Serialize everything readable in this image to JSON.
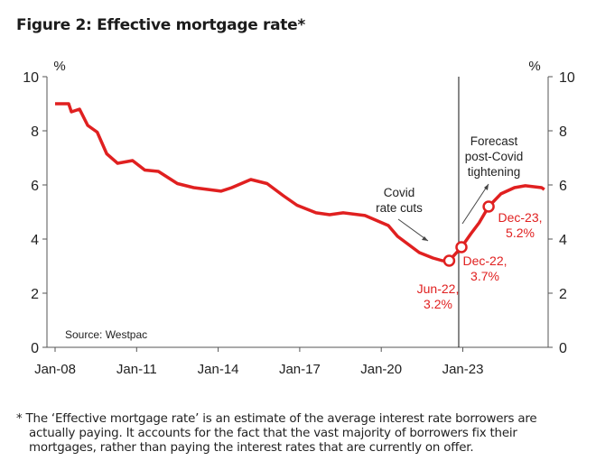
{
  "title": "Figure 2: Effective mortgage rate*",
  "footnote": [
    "* The ‘Effective mortgage rate’ is an estimate of the average interest rate borrowers are",
    "actually paying. It accounts for the fact that the vast majority of borrowers fix their",
    "mortgages, rather than paying the interest rates that are currently on offer."
  ],
  "chart_data": {
    "type": "line",
    "title": "Figure 2: Effective mortgage rate*",
    "ylabel_left": "%",
    "ylabel_right": "%",
    "ylim": [
      0,
      10
    ],
    "yticks": [
      0,
      2,
      4,
      6,
      8,
      10
    ],
    "xlim": [
      2008.0,
      2026.0
    ],
    "xticks": [
      {
        "x": 2008,
        "label": "Jan-08"
      },
      {
        "x": 2011,
        "label": "Jan-11"
      },
      {
        "x": 2014,
        "label": "Jan-14"
      },
      {
        "x": 2017,
        "label": "Jan-17"
      },
      {
        "x": 2020,
        "label": "Jan-20"
      },
      {
        "x": 2023,
        "label": "Jan-23"
      }
    ],
    "color": "#e02020",
    "forecast_start": 2022.85,
    "series": [
      {
        "x": [
          2008.0,
          2008.5,
          2008.6,
          2008.9,
          2009.2,
          2009.55,
          2009.9,
          2010.3,
          2010.85,
          2011.3,
          2011.8,
          2012.5,
          2013.1,
          2014.1,
          2014.5,
          2015.2,
          2015.8,
          2016.4,
          2016.9,
          2017.6,
          2018.1,
          2018.6,
          2019.4,
          2020.26,
          2020.6,
          2021.0,
          2021.4,
          2021.9,
          2022.25,
          2022.5,
          2022.95,
          2023.3,
          2023.6,
          2023.95,
          2024.4,
          2024.9,
          2025.3,
          2025.9,
          2026.0
        ],
        "y": [
          9.0,
          9.0,
          8.7,
          8.8,
          8.2,
          7.95,
          7.15,
          6.8,
          6.9,
          6.55,
          6.5,
          6.05,
          5.9,
          5.77,
          5.9,
          6.2,
          6.05,
          5.6,
          5.25,
          4.97,
          4.9,
          4.97,
          4.87,
          4.5,
          4.1,
          3.8,
          3.5,
          3.3,
          3.2,
          3.2,
          3.7,
          4.2,
          4.6,
          5.2,
          5.67,
          5.9,
          5.97,
          5.9,
          5.83
        ]
      }
    ],
    "markers": [
      {
        "x": 2022.5,
        "y": 3.2,
        "label": [
          "Jun-22,",
          "3.2%"
        ]
      },
      {
        "x": 2022.95,
        "y": 3.7,
        "label": [
          "Dec-22,",
          "3.7%"
        ]
      },
      {
        "x": 2023.95,
        "y": 5.2,
        "label": [
          "Dec-23,",
          "5.2%"
        ]
      }
    ],
    "annotations": [
      {
        "text": [
          "Covid",
          "rate cuts"
        ]
      },
      {
        "text": [
          "Forecast",
          "post-Covid",
          "tightening"
        ]
      }
    ],
    "source": "Source: Westpac"
  }
}
